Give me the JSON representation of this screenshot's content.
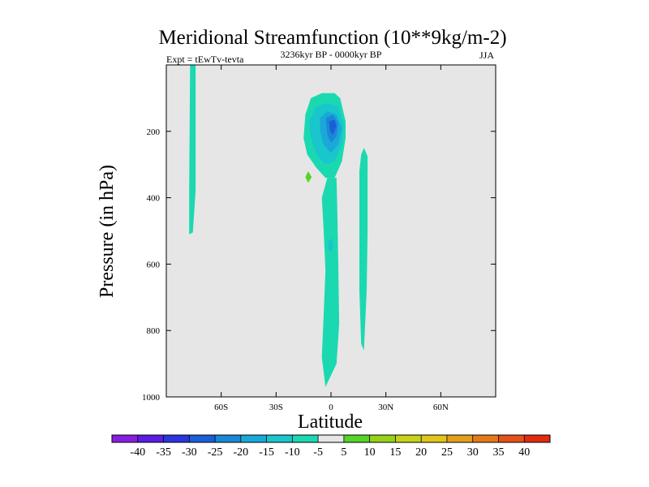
{
  "chart_data": {
    "type": "contour",
    "title": "Meridional Streamfunction (10**9kg/m-2)",
    "subtitle_left": "Expt = tEwTv-tevta",
    "subtitle_center": "3236kyr BP - 0000kyr BP",
    "subtitle_right": "JJA",
    "xlabel": "Latitude",
    "ylabel": "Pressure (in hPa)",
    "xlim": [
      -90,
      90
    ],
    "ylim": [
      1000,
      0
    ],
    "x_ticks": [
      {
        "value": -60,
        "label": "60S"
      },
      {
        "value": -30,
        "label": "30S"
      },
      {
        "value": 0,
        "label": "0"
      },
      {
        "value": 30,
        "label": "30N"
      },
      {
        "value": 60,
        "label": "60N"
      }
    ],
    "y_ticks": [
      {
        "value": 200,
        "label": "200"
      },
      {
        "value": 400,
        "label": "400"
      },
      {
        "value": 600,
        "label": "600"
      },
      {
        "value": 800,
        "label": "800"
      },
      {
        "value": 1000,
        "label": "1000"
      }
    ],
    "background_color": "#e6e6e6",
    "colorbar": {
      "labels": [
        "-40",
        "-35",
        "-30",
        "-25",
        "-20",
        "-15",
        "-10",
        "-5",
        "5",
        "10",
        "15",
        "20",
        "25",
        "30",
        "35",
        "40"
      ],
      "colors": [
        "#8a1ee0",
        "#5b1de3",
        "#2d35e0",
        "#1a5fd8",
        "#1a88d6",
        "#1aa8d8",
        "#18c6cc",
        "#1ad9b0",
        "#e6e6e6",
        "#55d42a",
        "#96d21a",
        "#c8d21a",
        "#e0c61a",
        "#e4a01a",
        "#e47a1a",
        "#e4521a",
        "#e02c12"
      ]
    },
    "regions": [
      {
        "name": "southern-negative-column",
        "level": -5,
        "color": "#1ad9b0",
        "points": [
          [
            -77,
            0
          ],
          [
            -74,
            0
          ],
          [
            -74,
            380
          ],
          [
            -75.5,
            505
          ],
          [
            -77.5,
            510
          ],
          [
            -77.5,
            380
          ]
        ]
      },
      {
        "name": "upper-negative-lobe",
        "level": -5,
        "color": "#1ad9b0",
        "points": [
          [
            -14,
            150
          ],
          [
            -11,
            100
          ],
          [
            -5,
            85
          ],
          [
            2,
            85
          ],
          [
            5,
            100
          ],
          [
            8,
            170
          ],
          [
            8,
            220
          ],
          [
            6,
            290
          ],
          [
            2,
            340
          ],
          [
            -3,
            340
          ],
          [
            -8,
            310
          ],
          [
            -13,
            270
          ],
          [
            -15,
            220
          ]
        ]
      },
      {
        "name": "upper-negative-core",
        "level": -10,
        "color": "#18c6cc",
        "points": [
          [
            -12,
            170
          ],
          [
            -8,
            125
          ],
          [
            -2,
            115
          ],
          [
            4,
            125
          ],
          [
            7,
            180
          ],
          [
            6,
            240
          ],
          [
            2,
            290
          ],
          [
            -3,
            300
          ],
          [
            -8,
            270
          ],
          [
            -11,
            220
          ]
        ]
      },
      {
        "name": "upper-negative-core-2",
        "level": -15,
        "color": "#1aa8d8",
        "points": [
          [
            -6,
            160
          ],
          [
            -2,
            140
          ],
          [
            3,
            150
          ],
          [
            6,
            190
          ],
          [
            4,
            240
          ],
          [
            0,
            265
          ],
          [
            -4,
            240
          ],
          [
            -6,
            200
          ]
        ]
      },
      {
        "name": "upper-negative-core-3",
        "level": -20,
        "color": "#1a88d6",
        "points": [
          [
            -3,
            160
          ],
          [
            1,
            150
          ],
          [
            4,
            175
          ],
          [
            3,
            215
          ],
          [
            0,
            235
          ],
          [
            -2,
            210
          ]
        ]
      },
      {
        "name": "upper-negative-core-4",
        "level": -25,
        "color": "#1a5fd8",
        "points": [
          [
            -1,
            170
          ],
          [
            2,
            165
          ],
          [
            3,
            185
          ],
          [
            1,
            210
          ],
          [
            -0.5,
            200
          ]
        ]
      },
      {
        "name": "equatorial-negative-column",
        "level": -5,
        "color": "#1ad9b0",
        "points": [
          [
            -2,
            340
          ],
          [
            3,
            340
          ],
          [
            3.5,
            450
          ],
          [
            4,
            600
          ],
          [
            4.5,
            780
          ],
          [
            3,
            900
          ],
          [
            -3,
            970
          ],
          [
            -5,
            880
          ],
          [
            -4,
            750
          ],
          [
            -3,
            620
          ],
          [
            -4,
            500
          ],
          [
            -5,
            400
          ]
        ]
      },
      {
        "name": "equatorial-negative-spot",
        "level": -10,
        "color": "#18c6cc",
        "points": [
          [
            -1.5,
            530
          ],
          [
            0.5,
            522
          ],
          [
            1.5,
            545
          ],
          [
            0,
            565
          ],
          [
            -1.5,
            555
          ]
        ]
      },
      {
        "name": "northern-negative-column",
        "level": -5,
        "color": "#1ad9b0",
        "points": [
          [
            16.5,
            270
          ],
          [
            18,
            250
          ],
          [
            20,
            275
          ],
          [
            20,
            500
          ],
          [
            19.5,
            680
          ],
          [
            18,
            860
          ],
          [
            16.5,
            840
          ],
          [
            15.5,
            680
          ],
          [
            15.5,
            450
          ],
          [
            15.5,
            320
          ]
        ]
      },
      {
        "name": "positive-spot",
        "level": 10,
        "color": "#55d42a",
        "points": [
          [
            -12.5,
            320
          ],
          [
            -10.5,
            338
          ],
          [
            -12.5,
            355
          ],
          [
            -14,
            338
          ]
        ]
      }
    ]
  }
}
